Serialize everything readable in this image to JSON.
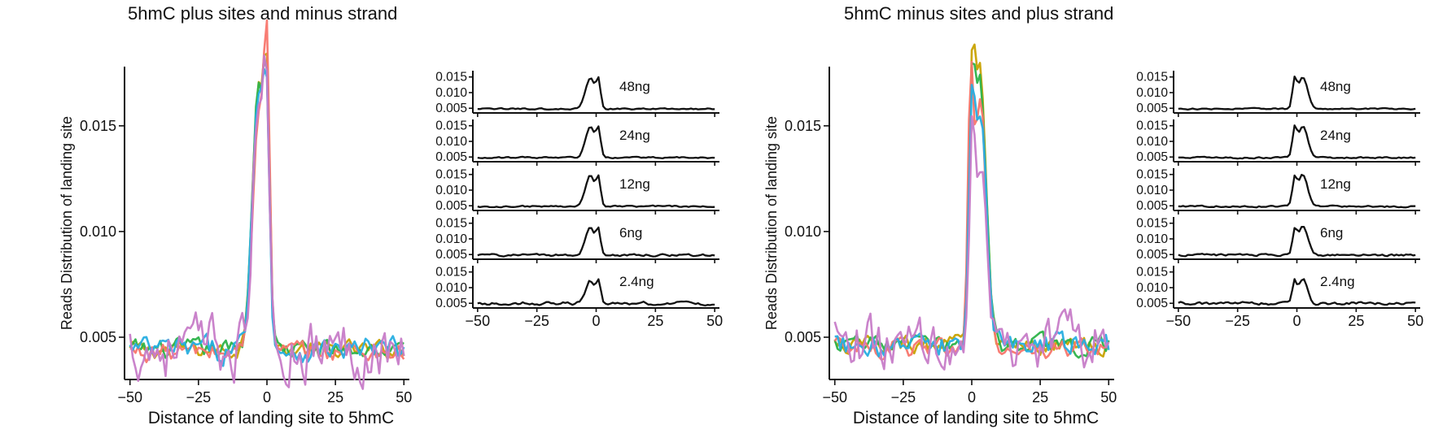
{
  "panels": [
    {
      "title": "5hmC plus sites and minus strand",
      "main_chart": {
        "type": "line",
        "xlabel": "Distance of landing site to 5hmC",
        "ylabel": "Reads Distribution of landing site",
        "xlim": [
          -52,
          52
        ],
        "ylim": [
          0.003,
          0.0178
        ],
        "xticks": [
          "−50",
          "−25",
          "0",
          "25",
          "50"
        ],
        "yticks": [
          "0.005",
          "0.010",
          "0.015"
        ],
        "legend": "none",
        "series": [
          {
            "color": "#c8a200",
            "peaks": [
              [
                -3,
                0.0173,
                2.3
              ],
              [
                0,
                0.013,
                1.0
              ]
            ],
            "baseline": 0.0044,
            "noise": 0.00035
          },
          {
            "color": "#2db34a",
            "peaks": [
              [
                -3,
                0.0171,
                2.3
              ],
              [
                0,
                0.0125,
                1.0
              ]
            ],
            "baseline": 0.0044,
            "noise": 0.0004
          },
          {
            "color": "#f8766d",
            "peaks": [
              [
                -3,
                0.016,
                2.2
              ],
              [
                0,
                0.0152,
                1.0
              ]
            ],
            "baseline": 0.0043,
            "noise": 0.0004
          },
          {
            "color": "#27aee2",
            "peaks": [
              [
                -3,
                0.0167,
                2.3
              ],
              [
                0,
                0.012,
                1.0
              ]
            ],
            "baseline": 0.0044,
            "noise": 0.0005
          },
          {
            "color": "#c77cc8",
            "peaks": [
              [
                -3,
                0.0168,
                2.0
              ],
              [
                0,
                0.014,
                0.9
              ]
            ],
            "baseline": 0.0045,
            "noise": 0.0012
          }
        ]
      },
      "facet_chart": {
        "type": "line",
        "xlim": [
          -52,
          52
        ],
        "ylim": [
          0.0035,
          0.017
        ],
        "xticks": [
          "−50",
          "−25",
          "0",
          "25",
          "50"
        ],
        "yticks": [
          "0.005",
          "0.010",
          "0.015"
        ],
        "facets": [
          {
            "label": "48ng",
            "peaks": [
              [
                -2.5,
                0.0147,
                2.0
              ],
              [
                1,
                0.0128,
                0.9
              ]
            ],
            "baseline": 0.0048,
            "noise": 0.00018
          },
          {
            "label": "24ng",
            "peaks": [
              [
                -2.5,
                0.0147,
                2.0
              ],
              [
                1,
                0.0128,
                0.9
              ]
            ],
            "baseline": 0.0048,
            "noise": 0.0002
          },
          {
            "label": "12ng",
            "peaks": [
              [
                -2.5,
                0.0147,
                2.0
              ],
              [
                1,
                0.0125,
                0.9
              ]
            ],
            "baseline": 0.0048,
            "noise": 0.00022
          },
          {
            "label": "6ng",
            "peaks": [
              [
                -2.5,
                0.014,
                2.0
              ],
              [
                1,
                0.0118,
                0.9
              ]
            ],
            "baseline": 0.0048,
            "noise": 0.0003
          },
          {
            "label": "2.4ng",
            "peaks": [
              [
                -2.5,
                0.0125,
                1.8
              ],
              [
                1,
                0.011,
                0.9
              ]
            ],
            "baseline": 0.005,
            "noise": 0.00045
          }
        ]
      }
    },
    {
      "title": "5hmC minus sites and plus strand",
      "main_chart": {
        "type": "line",
        "xlabel": "Distance of landing site to 5hmC",
        "ylabel": "Reads Distribution of landing site",
        "xlim": [
          -52,
          52
        ],
        "ylim": [
          0.003,
          0.0178
        ],
        "xticks": [
          "−50",
          "−25",
          "0",
          "25",
          "50"
        ],
        "yticks": [
          "0.005",
          "0.010",
          "0.015"
        ],
        "legend": "none",
        "series": [
          {
            "color": "#c8a200",
            "peaks": [
              [
                3,
                0.0175,
                2.3
              ],
              [
                0,
                0.013,
                1.0
              ]
            ],
            "baseline": 0.0046,
            "noise": 0.00035
          },
          {
            "color": "#2db34a",
            "peaks": [
              [
                3,
                0.0172,
                2.3
              ],
              [
                0,
                0.0125,
                1.0
              ]
            ],
            "baseline": 0.0046,
            "noise": 0.0004
          },
          {
            "color": "#f8766d",
            "peaks": [
              [
                3,
                0.0162,
                2.2
              ],
              [
                -0.5,
                0.0145,
                0.9
              ]
            ],
            "baseline": 0.0045,
            "noise": 0.0004
          },
          {
            "color": "#27aee2",
            "peaks": [
              [
                3,
                0.0157,
                2.3
              ],
              [
                0,
                0.012,
                1.0
              ]
            ],
            "baseline": 0.0046,
            "noise": 0.0005
          },
          {
            "color": "#c77cc8",
            "peaks": [
              [
                3,
                0.014,
                2.0
              ],
              [
                0,
                0.0135,
                0.9
              ]
            ],
            "baseline": 0.0047,
            "noise": 0.0011
          }
        ]
      },
      "facet_chart": {
        "type": "line",
        "xlim": [
          -52,
          52
        ],
        "ylim": [
          0.0035,
          0.017
        ],
        "xticks": [
          "−50",
          "−25",
          "0",
          "25",
          "50"
        ],
        "yticks": [
          "0.005",
          "0.010",
          "0.015"
        ],
        "facets": [
          {
            "label": "48ng",
            "peaks": [
              [
                2.5,
                0.015,
                2.0
              ],
              [
                -1,
                0.0128,
                0.9
              ]
            ],
            "baseline": 0.0048,
            "noise": 0.00018
          },
          {
            "label": "24ng",
            "peaks": [
              [
                2.5,
                0.015,
                2.0
              ],
              [
                -1,
                0.0128,
                0.9
              ]
            ],
            "baseline": 0.0048,
            "noise": 0.0002
          },
          {
            "label": "12ng",
            "peaks": [
              [
                2.5,
                0.015,
                2.0
              ],
              [
                -1,
                0.0125,
                0.9
              ]
            ],
            "baseline": 0.0048,
            "noise": 0.00022
          },
          {
            "label": "6ng",
            "peaks": [
              [
                2.5,
                0.0142,
                2.0
              ],
              [
                -1,
                0.0118,
                0.9
              ]
            ],
            "baseline": 0.0048,
            "noise": 0.0003
          },
          {
            "label": "2.4ng",
            "peaks": [
              [
                2.5,
                0.0128,
                1.8
              ],
              [
                -1,
                0.011,
                0.9
              ]
            ],
            "baseline": 0.005,
            "noise": 0.0004
          }
        ]
      }
    }
  ]
}
